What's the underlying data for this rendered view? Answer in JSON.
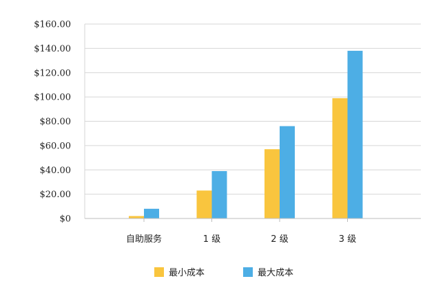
{
  "chart_data": {
    "type": "bar",
    "categories": [
      "自助服务",
      "1 级",
      "2 级",
      "3 级"
    ],
    "series": [
      {
        "name": "最小成本",
        "color": "#F9C53E",
        "values": [
          2,
          23,
          57,
          99
        ]
      },
      {
        "name": "最大成本",
        "color": "#4DAEE5",
        "values": [
          8,
          39,
          76,
          138
        ]
      }
    ],
    "y_ticks": [
      "$0",
      "$20.00",
      "$40.00",
      "$60.00",
      "$80.00",
      "$100.00",
      "$120.00",
      "$140.00",
      "$160.00"
    ],
    "ylim": [
      0,
      160
    ],
    "grid": true,
    "legend_position": "bottom-center",
    "title": "",
    "xlabel": "",
    "ylabel": ""
  },
  "colors": {
    "grid": "#D6D6D6",
    "axis": "#BDBDBD",
    "text": "#222222"
  }
}
